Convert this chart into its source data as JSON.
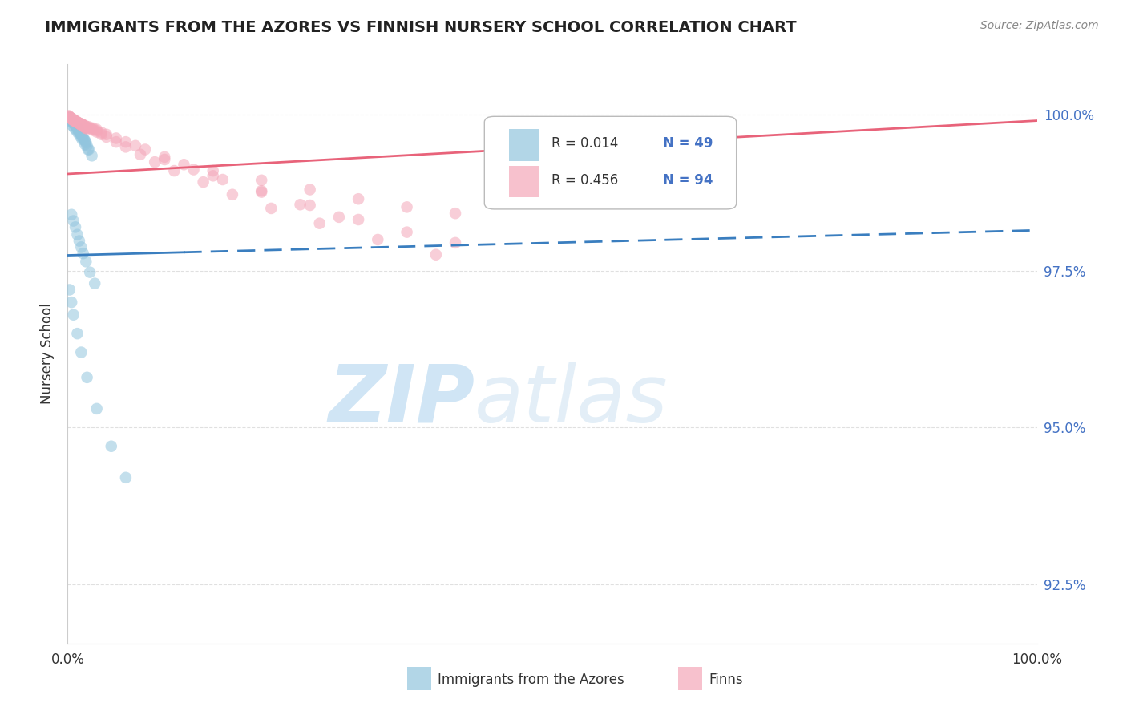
{
  "title": "IMMIGRANTS FROM THE AZORES VS FINNISH NURSERY SCHOOL CORRELATION CHART",
  "source_text": "Source: ZipAtlas.com",
  "ylabel": "Nursery School",
  "watermark_zip": "ZIP",
  "watermark_atlas": "atlas",
  "xmin": 0.0,
  "xmax": 1.0,
  "ymin": 0.9155,
  "ymax": 1.008,
  "yticks": [
    0.925,
    0.95,
    0.975,
    1.0
  ],
  "ytick_labels": [
    "92.5%",
    "95.0%",
    "97.5%",
    "100.0%"
  ],
  "blue_color": "#92c5de",
  "pink_color": "#f4a7b9",
  "blue_line_color": "#3a7ebf",
  "pink_line_color": "#e8637a",
  "grid_color": "#cccccc",
  "blue_line_x": [
    0.0,
    1.0
  ],
  "blue_line_y_start": 0.9775,
  "blue_line_y_end": 0.9815,
  "blue_line_solid_x_end": 0.12,
  "pink_line_x": [
    0.0,
    1.0
  ],
  "pink_line_y_start": 0.9905,
  "pink_line_y_end": 0.999,
  "blue_scatter_x": [
    0.002,
    0.003,
    0.004,
    0.005,
    0.006,
    0.007,
    0.008,
    0.009,
    0.01,
    0.011,
    0.012,
    0.013,
    0.014,
    0.015,
    0.016,
    0.017,
    0.018,
    0.019,
    0.02,
    0.022,
    0.003,
    0.005,
    0.007,
    0.009,
    0.011,
    0.013,
    0.015,
    0.018,
    0.021,
    0.025,
    0.004,
    0.006,
    0.008,
    0.01,
    0.012,
    0.014,
    0.016,
    0.019,
    0.023,
    0.028,
    0.002,
    0.004,
    0.006,
    0.01,
    0.014,
    0.02,
    0.03,
    0.045,
    0.06
  ],
  "blue_scatter_y": [
    0.9995,
    0.9992,
    0.999,
    0.9988,
    0.9986,
    0.9984,
    0.9982,
    0.998,
    0.9978,
    0.9975,
    0.9972,
    0.997,
    0.9968,
    0.9965,
    0.9962,
    0.996,
    0.9958,
    0.9955,
    0.995,
    0.9944,
    0.9988,
    0.9982,
    0.9978,
    0.9974,
    0.997,
    0.9965,
    0.996,
    0.9952,
    0.9944,
    0.9934,
    0.984,
    0.983,
    0.982,
    0.9808,
    0.9798,
    0.9788,
    0.9778,
    0.9765,
    0.9748,
    0.973,
    0.972,
    0.97,
    0.968,
    0.965,
    0.962,
    0.958,
    0.953,
    0.947,
    0.942
  ],
  "pink_scatter_x": [
    0.001,
    0.002,
    0.003,
    0.004,
    0.005,
    0.006,
    0.007,
    0.008,
    0.009,
    0.01,
    0.011,
    0.012,
    0.013,
    0.014,
    0.015,
    0.016,
    0.017,
    0.018,
    0.019,
    0.02,
    0.003,
    0.005,
    0.007,
    0.009,
    0.012,
    0.015,
    0.018,
    0.022,
    0.026,
    0.03,
    0.002,
    0.004,
    0.006,
    0.008,
    0.01,
    0.013,
    0.016,
    0.02,
    0.025,
    0.03,
    0.035,
    0.04,
    0.05,
    0.06,
    0.07,
    0.08,
    0.1,
    0.12,
    0.15,
    0.2,
    0.25,
    0.3,
    0.35,
    0.4,
    0.15,
    0.2,
    0.25,
    0.3,
    0.35,
    0.4,
    0.002,
    0.004,
    0.006,
    0.008,
    0.01,
    0.012,
    0.015,
    0.018,
    0.022,
    0.026,
    0.03,
    0.035,
    0.04,
    0.05,
    0.06,
    0.075,
    0.09,
    0.11,
    0.14,
    0.17,
    0.21,
    0.26,
    0.32,
    0.38,
    0.1,
    0.13,
    0.16,
    0.2,
    0.24,
    0.28,
    0.005,
    0.007,
    0.01,
    0.014
  ],
  "pink_scatter_y": [
    0.9998,
    0.9996,
    0.9994,
    0.9993,
    0.9992,
    0.9991,
    0.999,
    0.9989,
    0.9988,
    0.9987,
    0.9986,
    0.9985,
    0.9984,
    0.9983,
    0.9982,
    0.9981,
    0.998,
    0.9979,
    0.9978,
    0.9977,
    0.9994,
    0.9992,
    0.999,
    0.9988,
    0.9986,
    0.9984,
    0.9982,
    0.998,
    0.9978,
    0.9976,
    0.9995,
    0.9993,
    0.9991,
    0.9989,
    0.9987,
    0.9985,
    0.9982,
    0.998,
    0.9977,
    0.9974,
    0.9971,
    0.9968,
    0.9962,
    0.9956,
    0.995,
    0.9944,
    0.9932,
    0.992,
    0.9902,
    0.9878,
    0.9855,
    0.9832,
    0.9812,
    0.9795,
    0.991,
    0.9895,
    0.988,
    0.9865,
    0.9852,
    0.9842,
    0.9996,
    0.9994,
    0.9992,
    0.999,
    0.9988,
    0.9986,
    0.9984,
    0.9981,
    0.9978,
    0.9975,
    0.9972,
    0.9968,
    0.9964,
    0.9956,
    0.9948,
    0.9936,
    0.9924,
    0.991,
    0.9892,
    0.9872,
    0.985,
    0.9826,
    0.98,
    0.9776,
    0.9928,
    0.9912,
    0.9896,
    0.9876,
    0.9856,
    0.9836,
    0.9991,
    0.9989,
    0.9987,
    0.9985
  ]
}
